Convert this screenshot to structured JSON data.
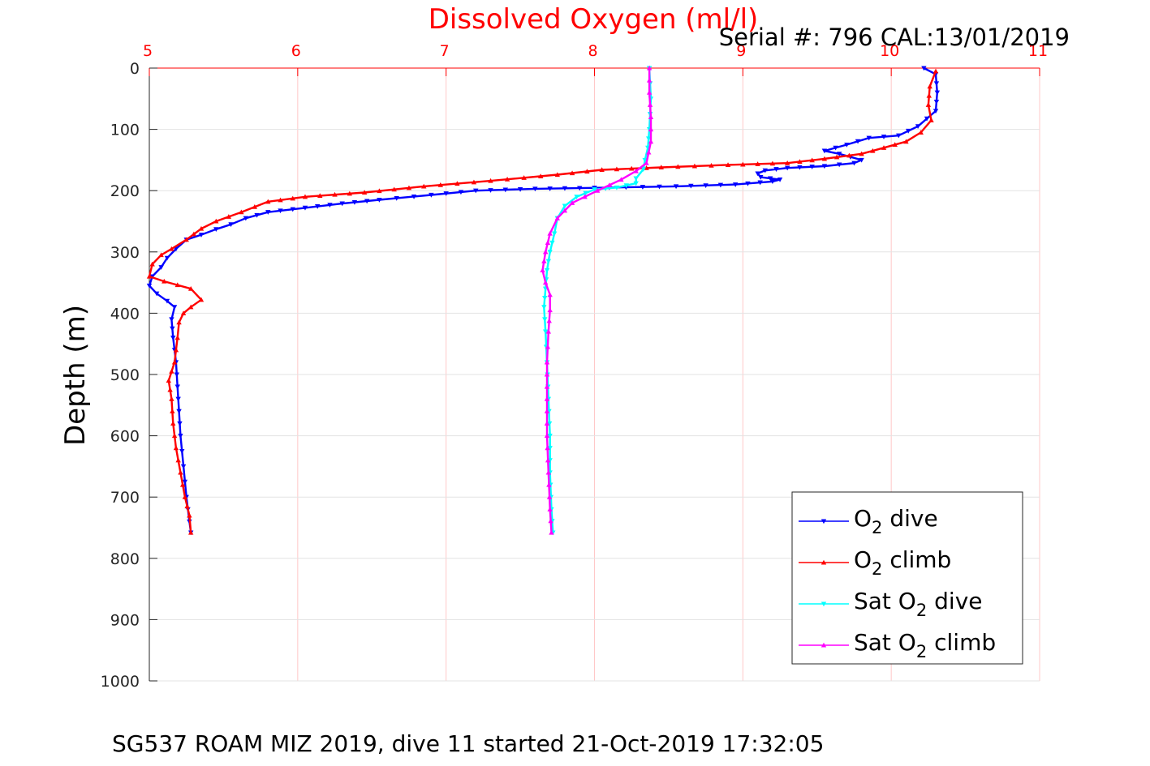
{
  "chart_data": {
    "type": "line",
    "title": "Dissolved Oxygen (ml/l)",
    "subtitle": "Serial #: 796  CAL:13/01/2019",
    "ylabel": "Depth (m)",
    "xlabel": "",
    "caption": "SG537 ROAM MIZ 2019, dive 11 started 21-Oct-2019 17:32:05",
    "x_axis_position": "top",
    "y_reversed": true,
    "xlim": [
      5,
      11
    ],
    "ylim": [
      0,
      1000
    ],
    "x_ticks": [
      "5",
      "6",
      "7",
      "8",
      "9",
      "10",
      "11"
    ],
    "y_ticks": [
      "0",
      "100",
      "200",
      "300",
      "400",
      "500",
      "600",
      "700",
      "800",
      "900",
      "1000"
    ],
    "grid": true,
    "legend_position": "bottom-right",
    "colors": {
      "title": "#ff0000",
      "x_tick_labels": "#ff0000",
      "x_grid": "#ffc8c8",
      "y_grid": "#e3e3e3",
      "axis": "#262626"
    },
    "legend": [
      {
        "pre": "O",
        "sub": "2",
        "post": " dive",
        "color": "#0000ff",
        "marker": "triangle-down"
      },
      {
        "pre": "O",
        "sub": "2",
        "post": " climb",
        "color": "#ff0000",
        "marker": "triangle-up"
      },
      {
        "pre": "Sat O",
        "sub": "2",
        "post": " dive",
        "color": "#00ffff",
        "marker": "triangle-down"
      },
      {
        "pre": "Sat O",
        "sub": "2",
        "post": " climb",
        "color": "#ff00ff",
        "marker": "triangle-up"
      }
    ],
    "series": [
      {
        "name": "O2 dive",
        "color": "#0000ff",
        "marker": "triangle-down",
        "points": [
          [
            10.22,
            0
          ],
          [
            10.3,
            10
          ],
          [
            10.31,
            40
          ],
          [
            10.3,
            70
          ],
          [
            10.18,
            95
          ],
          [
            10.05,
            110
          ],
          [
            9.85,
            114
          ],
          [
            9.7,
            125
          ],
          [
            9.55,
            135
          ],
          [
            9.65,
            140
          ],
          [
            9.8,
            150
          ],
          [
            9.75,
            155
          ],
          [
            9.55,
            160
          ],
          [
            9.3,
            163
          ],
          [
            9.15,
            167
          ],
          [
            9.1,
            172
          ],
          [
            9.12,
            178
          ],
          [
            9.25,
            182
          ],
          [
            9.2,
            185
          ],
          [
            8.95,
            190
          ],
          [
            8.55,
            193
          ],
          [
            8.1,
            195
          ],
          [
            7.6,
            197
          ],
          [
            7.2,
            200
          ],
          [
            6.9,
            207
          ],
          [
            6.55,
            215
          ],
          [
            6.3,
            221
          ],
          [
            6.05,
            228
          ],
          [
            5.8,
            235
          ],
          [
            5.65,
            245
          ],
          [
            5.55,
            255
          ],
          [
            5.45,
            263
          ],
          [
            5.35,
            272
          ],
          [
            5.25,
            280
          ],
          [
            5.18,
            295
          ],
          [
            5.12,
            310
          ],
          [
            5.08,
            325
          ],
          [
            5.02,
            340
          ],
          [
            5.0,
            355
          ],
          [
            5.05,
            368
          ],
          [
            5.12,
            380
          ],
          [
            5.17,
            390
          ],
          [
            5.15,
            410
          ],
          [
            5.16,
            440
          ],
          [
            5.18,
            480
          ],
          [
            5.19,
            520
          ],
          [
            5.2,
            560
          ],
          [
            5.21,
            600
          ],
          [
            5.23,
            650
          ],
          [
            5.25,
            700
          ],
          [
            5.27,
            740
          ],
          [
            5.28,
            758
          ]
        ]
      },
      {
        "name": "O2 climb",
        "color": "#ff0000",
        "marker": "triangle-up",
        "points": [
          [
            5.28,
            758
          ],
          [
            5.27,
            730
          ],
          [
            5.24,
            700
          ],
          [
            5.21,
            660
          ],
          [
            5.18,
            620
          ],
          [
            5.16,
            580
          ],
          [
            5.15,
            540
          ],
          [
            5.13,
            510
          ],
          [
            5.17,
            480
          ],
          [
            5.19,
            440
          ],
          [
            5.2,
            415
          ],
          [
            5.23,
            400
          ],
          [
            5.28,
            390
          ],
          [
            5.35,
            378
          ],
          [
            5.28,
            360
          ],
          [
            5.1,
            348
          ],
          [
            5.0,
            340
          ],
          [
            5.02,
            320
          ],
          [
            5.08,
            305
          ],
          [
            5.15,
            295
          ],
          [
            5.25,
            280
          ],
          [
            5.35,
            262
          ],
          [
            5.45,
            250
          ],
          [
            5.62,
            235
          ],
          [
            5.8,
            218
          ],
          [
            6.05,
            210
          ],
          [
            6.45,
            203
          ],
          [
            6.85,
            193
          ],
          [
            7.3,
            184
          ],
          [
            7.75,
            174
          ],
          [
            8.05,
            166
          ],
          [
            8.45,
            162
          ],
          [
            8.9,
            158
          ],
          [
            9.3,
            155
          ],
          [
            9.55,
            148
          ],
          [
            9.8,
            140
          ],
          [
            9.95,
            130
          ],
          [
            10.1,
            120
          ],
          [
            10.2,
            105
          ],
          [
            10.27,
            85
          ],
          [
            10.25,
            60
          ],
          [
            10.26,
            30
          ],
          [
            10.3,
            5
          ]
        ]
      },
      {
        "name": "Sat O2 dive",
        "color": "#00ffff",
        "marker": "triangle-down",
        "points": [
          [
            8.37,
            0
          ],
          [
            8.38,
            50
          ],
          [
            8.37,
            100
          ],
          [
            8.36,
            130
          ],
          [
            8.34,
            150
          ],
          [
            8.33,
            165
          ],
          [
            8.28,
            180
          ],
          [
            8.28,
            188
          ],
          [
            8.15,
            195
          ],
          [
            8.0,
            198
          ],
          [
            7.88,
            210
          ],
          [
            7.8,
            225
          ],
          [
            7.75,
            245
          ],
          [
            7.73,
            270
          ],
          [
            7.7,
            300
          ],
          [
            7.68,
            330
          ],
          [
            7.67,
            360
          ],
          [
            7.66,
            390
          ],
          [
            7.67,
            430
          ],
          [
            7.68,
            480
          ],
          [
            7.69,
            540
          ],
          [
            7.7,
            600
          ],
          [
            7.7,
            660
          ],
          [
            7.71,
            720
          ],
          [
            7.72,
            758
          ]
        ]
      },
      {
        "name": "Sat O2 climb",
        "color": "#ff00ff",
        "marker": "triangle-up",
        "points": [
          [
            7.71,
            758
          ],
          [
            7.7,
            720
          ],
          [
            7.69,
            660
          ],
          [
            7.68,
            600
          ],
          [
            7.68,
            540
          ],
          [
            7.68,
            480
          ],
          [
            7.69,
            430
          ],
          [
            7.7,
            395
          ],
          [
            7.7,
            370
          ],
          [
            7.67,
            350
          ],
          [
            7.65,
            330
          ],
          [
            7.67,
            300
          ],
          [
            7.7,
            270
          ],
          [
            7.75,
            245
          ],
          [
            7.85,
            220
          ],
          [
            8.02,
            200
          ],
          [
            8.18,
            182
          ],
          [
            8.28,
            168
          ],
          [
            8.35,
            155
          ],
          [
            8.38,
            120
          ],
          [
            8.38,
            80
          ],
          [
            8.37,
            40
          ],
          [
            8.37,
            0
          ]
        ]
      }
    ]
  }
}
